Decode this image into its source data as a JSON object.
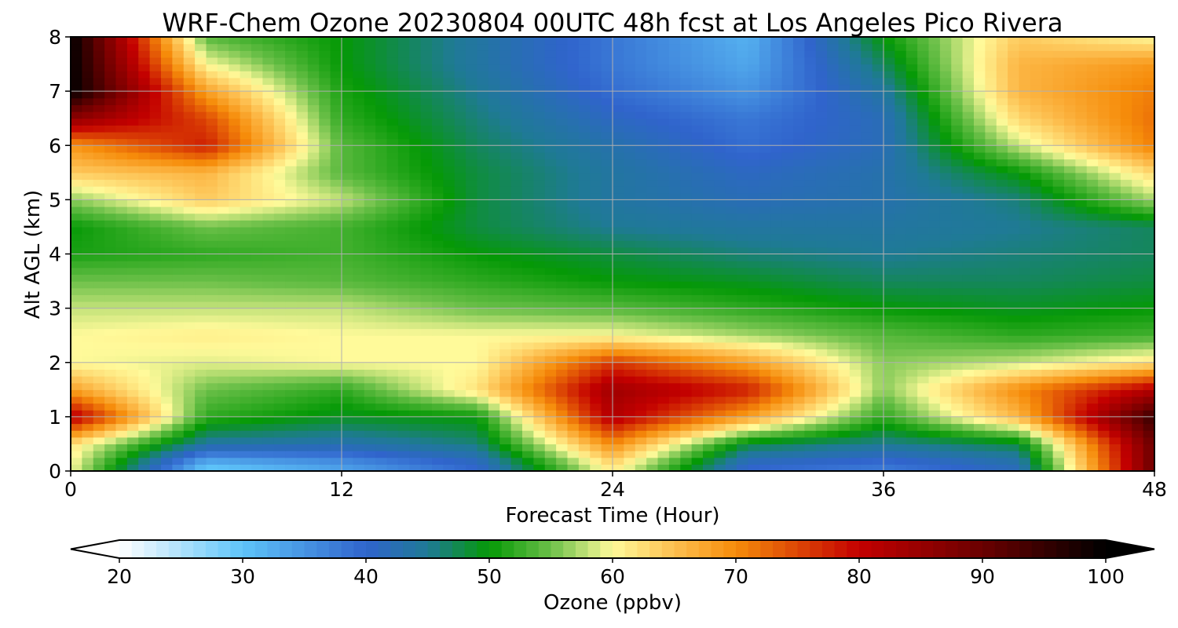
{
  "chart_data": {
    "type": "heatmap",
    "title": "WRF-Chem Ozone  20230804 00UTC 48h fcst at Los Angeles Pico Rivera",
    "xlabel": "Forecast Time (Hour)",
    "ylabel": "Alt AGL (km)",
    "xlim": [
      0,
      48
    ],
    "ylim": [
      0,
      8
    ],
    "x_ticks": [
      0,
      12,
      24,
      36,
      48
    ],
    "y_ticks": [
      0,
      1,
      2,
      3,
      4,
      5,
      6,
      7,
      8
    ],
    "grid": true,
    "x": [
      0,
      6,
      12,
      18,
      24,
      30,
      36,
      42,
      48
    ],
    "y": [
      0.1,
      0.5,
      1,
      1.5,
      2,
      2.5,
      3,
      3.5,
      4,
      4.5,
      5,
      5.5,
      6,
      6.5,
      7,
      7.5,
      8
    ],
    "z": [
      [
        60,
        30,
        34,
        40,
        62,
        40,
        38,
        42,
        90
      ],
      [
        62,
        44,
        43,
        46,
        70,
        48,
        45,
        48,
        90
      ],
      [
        82,
        52,
        49,
        50,
        82,
        68,
        52,
        66,
        95
      ],
      [
        68,
        55,
        52,
        62,
        84,
        78,
        56,
        70,
        82
      ],
      [
        60,
        59,
        60,
        60,
        76,
        68,
        56,
        58,
        62
      ],
      [
        60,
        61,
        60,
        60,
        60,
        57,
        54,
        52,
        53
      ],
      [
        58,
        58,
        58,
        55,
        54,
        52,
        50,
        49,
        50
      ],
      [
        55,
        55,
        54,
        52,
        50,
        49,
        47,
        47,
        48
      ],
      [
        51,
        52,
        53,
        50,
        48,
        46,
        45,
        46,
        47
      ],
      [
        50,
        55,
        53,
        48,
        45,
        44,
        44,
        45,
        47
      ],
      [
        56,
        64,
        58,
        48,
        44,
        42,
        43,
        46,
        57
      ],
      [
        64,
        66,
        54,
        48,
        44,
        41,
        43,
        50,
        63
      ],
      [
        69,
        78,
        54,
        47,
        43,
        39,
        42,
        58,
        71
      ],
      [
        86,
        75,
        52,
        46,
        41,
        38,
        42,
        63,
        72
      ],
      [
        100,
        68,
        51,
        45,
        39,
        35,
        44,
        66,
        71
      ],
      [
        100,
        60,
        50,
        44,
        38,
        33,
        47,
        66,
        69
      ],
      [
        100,
        54,
        50,
        44,
        38,
        32,
        50,
        64,
        60
      ]
    ],
    "colorbar": {
      "label": "Ozone  (ppbv)",
      "min": 20,
      "max": 100,
      "ticks": [
        20,
        30,
        40,
        50,
        60,
        70,
        80,
        90,
        100
      ],
      "extend": "both",
      "stops": [
        {
          "v": 20,
          "c": "#ffffff"
        },
        {
          "v": 30,
          "c": "#5ec4f9"
        },
        {
          "v": 40,
          "c": "#3064cc"
        },
        {
          "v": 45,
          "c": "#1f7a96"
        },
        {
          "v": 50,
          "c": "#059906"
        },
        {
          "v": 55,
          "c": "#6cc049"
        },
        {
          "v": 60,
          "c": "#fffa9a"
        },
        {
          "v": 65,
          "c": "#fdbf50"
        },
        {
          "v": 70,
          "c": "#f68c0a"
        },
        {
          "v": 80,
          "c": "#c30000"
        },
        {
          "v": 90,
          "c": "#6a0000"
        },
        {
          "v": 100,
          "c": "#000000"
        }
      ]
    }
  }
}
